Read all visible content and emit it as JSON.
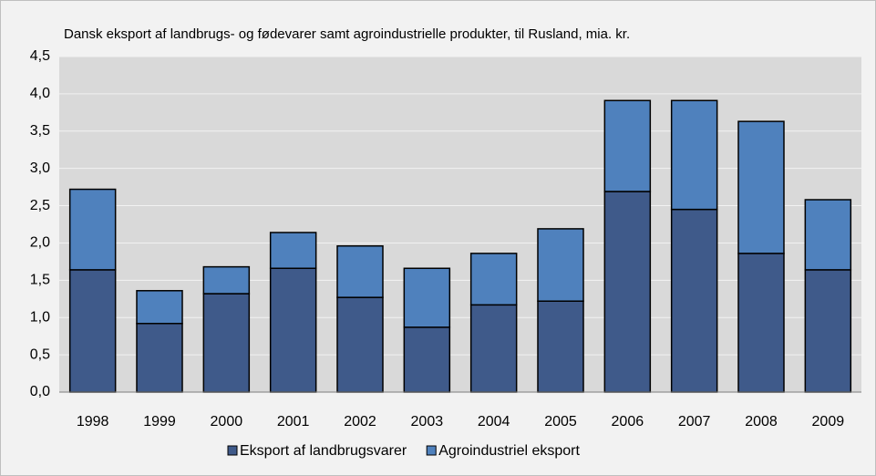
{
  "chart_data": {
    "type": "stacked_bar",
    "title": "Dansk eksport af landbrugs- og fødevarer samt agroindustrielle produkter, til Rusland, mia. kr.",
    "categories": [
      "1998",
      "1999",
      "2000",
      "2001",
      "2002",
      "2003",
      "2004",
      "2005",
      "2006",
      "2007",
      "2008",
      "2009"
    ],
    "series": [
      {
        "name": "Eksport af landbrugsvarer",
        "color": "#3f5a8a",
        "values": [
          1.64,
          0.92,
          1.32,
          1.66,
          1.27,
          0.87,
          1.17,
          1.22,
          2.69,
          2.45,
          1.86,
          1.64
        ]
      },
      {
        "name": "Agroindustriel eksport",
        "color": "#4f81bd",
        "values": [
          1.08,
          0.44,
          0.36,
          0.48,
          0.69,
          0.79,
          0.69,
          0.97,
          1.22,
          1.46,
          1.77,
          0.94
        ]
      }
    ],
    "ylim": [
      0,
      4.5
    ],
    "yticks": [
      {
        "value": 0,
        "label": "0,0"
      },
      {
        "value": 0.5,
        "label": "0,5"
      },
      {
        "value": 1,
        "label": "1,0"
      },
      {
        "value": 1.5,
        "label": "1,5"
      },
      {
        "value": 2,
        "label": "2,0"
      },
      {
        "value": 2.5,
        "label": "2,5"
      },
      {
        "value": 3,
        "label": "3,0"
      },
      {
        "value": 3.5,
        "label": "3,5"
      },
      {
        "value": 4,
        "label": "4,0"
      },
      {
        "value": 4.5,
        "label": "4,5"
      }
    ],
    "grid": true,
    "legend": "bottom"
  }
}
